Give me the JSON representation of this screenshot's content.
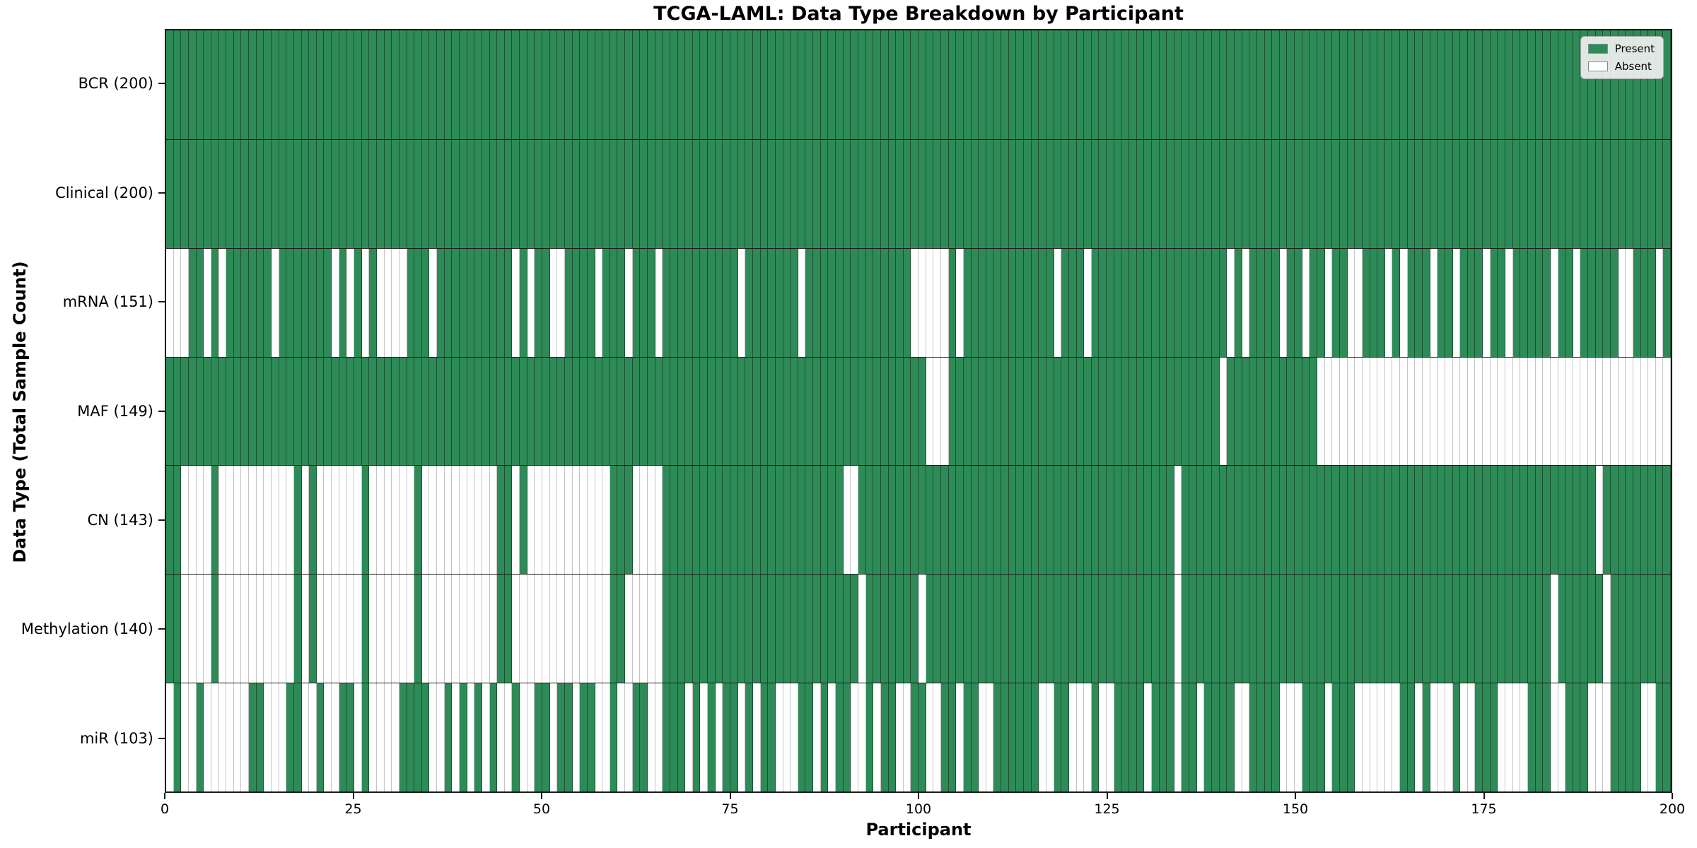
{
  "title": "TCGA-LAML: Data Type Breakdown by Participant",
  "xlabel": "Participant",
  "ylabel": "Data Type (Total Sample Count)",
  "legend": {
    "present_label": "Present",
    "absent_label": "Absent"
  },
  "colors": {
    "present": "#2E8B57",
    "absent": "#FFFFFF",
    "spine": "#1A1A1A"
  },
  "x_ticks": [
    0,
    25,
    50,
    75,
    100,
    125,
    150,
    175,
    200
  ],
  "chart_data": {
    "type": "heatmap",
    "x_axis": "participant_index",
    "n_participants": 200,
    "x_range": [
      0,
      200
    ],
    "legend_position": "upper right",
    "cell_states": [
      "Present",
      "Absent"
    ],
    "rows": [
      {
        "name": "BCR",
        "label": "BCR (200)",
        "present_count": 200,
        "absent": []
      },
      {
        "name": "Clinical",
        "label": "Clinical (200)",
        "present_count": 200,
        "absent": []
      },
      {
        "name": "mRNA",
        "label": "mRNA (151)",
        "present_count": 151,
        "absent": [
          0,
          1,
          2,
          5,
          7,
          14,
          22,
          24,
          26,
          28,
          29,
          30,
          31,
          35,
          46,
          48,
          51,
          52,
          57,
          61,
          65,
          76,
          84,
          99,
          100,
          101,
          102,
          103,
          105,
          118,
          122,
          141,
          143,
          148,
          151,
          154,
          157,
          158,
          162,
          164,
          168,
          171,
          175,
          178,
          184,
          187,
          193,
          194,
          198
        ]
      },
      {
        "name": "MAF",
        "label": "MAF (149)",
        "present_count": 149,
        "absent": [
          101,
          102,
          103,
          140,
          153,
          154,
          155,
          156,
          157,
          158,
          159,
          160,
          161,
          162,
          163,
          164,
          165,
          166,
          167,
          168,
          169,
          170,
          171,
          172,
          173,
          174,
          175,
          176,
          177,
          178,
          179,
          180,
          181,
          182,
          183,
          184,
          185,
          186,
          187,
          188,
          189,
          190,
          191,
          192,
          193,
          194,
          195,
          196,
          197,
          198,
          199
        ]
      },
      {
        "name": "CN",
        "label": "CN (143)",
        "present_count": 143,
        "absent": [
          2,
          3,
          4,
          5,
          7,
          8,
          9,
          10,
          11,
          12,
          13,
          14,
          15,
          16,
          18,
          20,
          21,
          22,
          23,
          24,
          25,
          27,
          28,
          29,
          30,
          31,
          32,
          34,
          35,
          36,
          37,
          38,
          39,
          40,
          41,
          42,
          43,
          46,
          48,
          49,
          50,
          51,
          52,
          53,
          54,
          55,
          56,
          57,
          58,
          62,
          63,
          64,
          65,
          90,
          91,
          134,
          190
        ]
      },
      {
        "name": "Methylation",
        "label": "Methylation (140)",
        "present_count": 140,
        "absent": [
          2,
          3,
          4,
          5,
          7,
          8,
          9,
          10,
          11,
          12,
          13,
          14,
          15,
          16,
          18,
          20,
          21,
          22,
          23,
          24,
          25,
          27,
          28,
          29,
          30,
          31,
          32,
          34,
          35,
          36,
          37,
          38,
          39,
          40,
          41,
          42,
          43,
          46,
          47,
          48,
          49,
          50,
          51,
          52,
          53,
          54,
          55,
          56,
          57,
          58,
          61,
          62,
          63,
          64,
          65,
          92,
          100,
          134,
          184,
          191
        ]
      },
      {
        "name": "miR",
        "label": "miR (103)",
        "present_count": 103,
        "absent": [
          0,
          2,
          3,
          5,
          6,
          7,
          8,
          9,
          10,
          13,
          14,
          15,
          18,
          19,
          21,
          22,
          25,
          27,
          28,
          29,
          30,
          35,
          36,
          38,
          40,
          42,
          44,
          45,
          47,
          48,
          51,
          54,
          57,
          58,
          60,
          61,
          64,
          65,
          69,
          71,
          73,
          76,
          78,
          81,
          82,
          83,
          86,
          88,
          91,
          92,
          94,
          97,
          98,
          101,
          102,
          105,
          108,
          109,
          116,
          117,
          120,
          121,
          122,
          124,
          125,
          130,
          134,
          137,
          142,
          143,
          148,
          149,
          150,
          154,
          158,
          159,
          160,
          161,
          162,
          163,
          166,
          168,
          169,
          170,
          172,
          173,
          177,
          178,
          179,
          180,
          184,
          185,
          189,
          190,
          191,
          196,
          197
        ]
      }
    ]
  }
}
